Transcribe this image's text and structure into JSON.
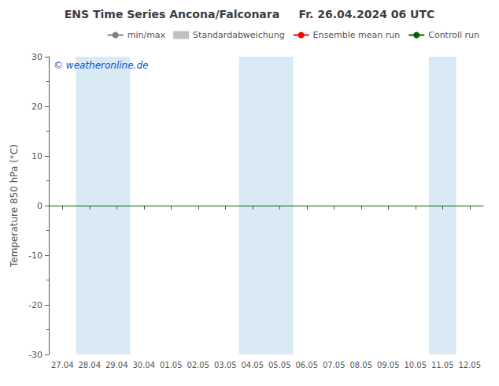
{
  "chart_data": {
    "type": "line",
    "title": "ENS Time Series Ancona/Falconara     Fr. 26.04.2024 06 UTC",
    "ylabel": "Temperature 850 hPa (°C)",
    "categories": [
      "27.04",
      "28.04",
      "29.04",
      "30.04",
      "01.05",
      "02.05",
      "03.05",
      "04.05",
      "05.05",
      "06.05",
      "07.05",
      "08.05",
      "09.05",
      "10.05",
      "11.05",
      "12.05"
    ],
    "ylim": [
      -30,
      30
    ],
    "yticks": [
      -30,
      -20,
      -10,
      0,
      10,
      20,
      30
    ],
    "grid": false,
    "legend": "upper right",
    "series": [
      {
        "name": "min/max",
        "type": "line",
        "color": "#808080",
        "values": [
          null,
          null,
          null,
          null,
          null,
          null,
          null,
          null,
          null,
          null,
          null,
          null,
          null,
          null,
          null,
          null
        ]
      },
      {
        "name": "Standardabweichung",
        "type": "area",
        "color": "#c0c0c0",
        "values": [
          null,
          null,
          null,
          null,
          null,
          null,
          null,
          null,
          null,
          null,
          null,
          null,
          null,
          null,
          null,
          null
        ]
      },
      {
        "name": "Ensemble mean run",
        "type": "line",
        "color": "#ff0000",
        "values": [
          null,
          null,
          null,
          null,
          null,
          null,
          null,
          null,
          null,
          null,
          null,
          null,
          null,
          null,
          null,
          null
        ]
      },
      {
        "name": "Controll run",
        "type": "hline",
        "color": "#006400",
        "value": 0
      }
    ],
    "shaded_bands": [
      [
        "28.04",
        "29.04"
      ],
      [
        "04.05",
        "05.05"
      ],
      [
        "11.05",
        "11.05"
      ]
    ],
    "shaded_color": "#daeaf5",
    "annotations": [
      {
        "text": "© weatheronline.de",
        "color": "#0055cc"
      }
    ]
  }
}
